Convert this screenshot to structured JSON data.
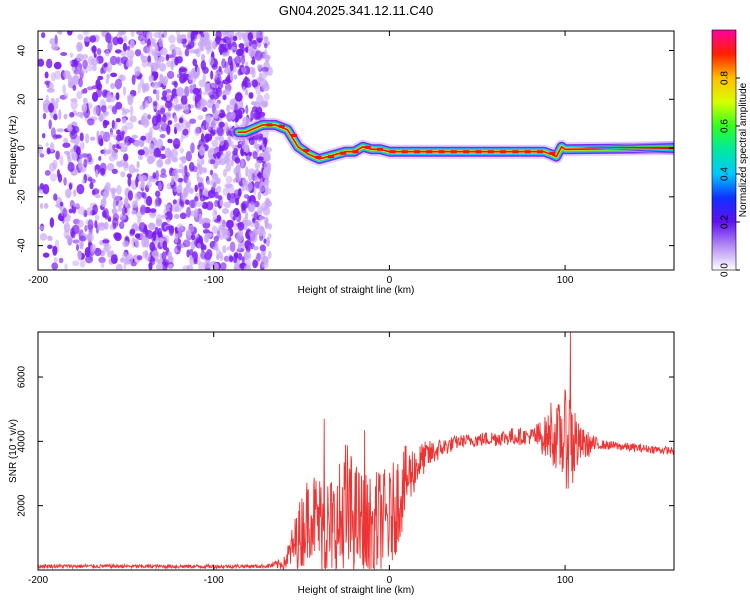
{
  "title": "GN04.2025.341.12.11.C40",
  "colors": {
    "snr_line": "#ee3333",
    "ridge_main": "#ee1111",
    "speckle": "#7a1cf2",
    "speckle_light": "#c9a6f7"
  },
  "chart_data": [
    {
      "type": "heatmap",
      "title": "GN04.2025.341.12.11.C40",
      "xlabel": "Height of straight line (km)",
      "ylabel": "Frequency (Hz)",
      "xlim": [
        -200,
        162
      ],
      "ylim": [
        -50,
        48
      ],
      "xticks": [
        -200,
        -100,
        0,
        100
      ],
      "yticks": [
        -40,
        -20,
        0,
        20,
        40
      ],
      "noise_region_x": [
        -200,
        -68
      ],
      "ridge": {
        "x": [
          -86,
          -82,
          -72,
          -65,
          -58,
          -52,
          -46,
          -40,
          -35,
          -30,
          -25,
          -20,
          -15,
          -10,
          -5,
          0,
          20,
          40,
          60,
          80,
          88,
          92,
          95,
          98,
          100,
          162
        ],
        "freq": [
          6.5,
          6.5,
          9.5,
          9.5,
          7.5,
          0.5,
          -2.5,
          -4.5,
          -3.5,
          -2.5,
          -1.5,
          -1.5,
          0.5,
          -0.5,
          -0.5,
          -1.5,
          -1.5,
          -1.5,
          -1.5,
          -1.5,
          -1.5,
          -2.5,
          -3.5,
          0.5,
          -0.5,
          0.0
        ]
      },
      "colorbar": {
        "label": "Normalized spectral amplitude",
        "range": [
          0.0,
          1.0
        ],
        "ticks": [
          "0.0",
          "0.2",
          "0.4",
          "0.6",
          "0.8"
        ]
      }
    },
    {
      "type": "line",
      "xlabel": "Height of straight line (km)",
      "ylabel": "SNR (10 * v/v)",
      "xlim": [
        -200,
        162
      ],
      "ylim": [
        0,
        7400
      ],
      "xticks": [
        -200,
        -100,
        0,
        100
      ],
      "yticks": [
        2000,
        4000,
        6000
      ],
      "envelope": {
        "x": [
          -200,
          -100,
          -70,
          -60,
          -55,
          -50,
          -45,
          -40,
          -35,
          -30,
          -25,
          -20,
          -15,
          -10,
          -5,
          0,
          5,
          10,
          15,
          20,
          30,
          40,
          50,
          60,
          70,
          80,
          90,
          95,
          100,
          104,
          108,
          120,
          140,
          162
        ],
        "center": [
          120,
          110,
          120,
          200,
          700,
          1200,
          1800,
          1500,
          1200,
          1300,
          1600,
          1700,
          1300,
          1200,
          1600,
          1500,
          2200,
          2800,
          3200,
          3500,
          3800,
          4000,
          4050,
          4100,
          4150,
          4150,
          4150,
          4100,
          4100,
          4000,
          3900,
          3900,
          3800,
          3700
        ],
        "amp": [
          60,
          60,
          60,
          200,
          700,
          1200,
          1400,
          1500,
          1800,
          1700,
          2600,
          1700,
          1800,
          1800,
          1600,
          1600,
          1500,
          1100,
          700,
          500,
          300,
          200,
          220,
          250,
          280,
          250,
          700,
          1000,
          1500,
          1800,
          600,
          150,
          130,
          120
        ]
      },
      "peaks": [
        {
          "x": 103,
          "y": 7400
        },
        {
          "x": 92,
          "y": 5200
        },
        {
          "x": -14,
          "y": 4850
        },
        {
          "x": -37,
          "y": 4700
        },
        {
          "x": -14,
          "y": 4350
        }
      ]
    }
  ]
}
